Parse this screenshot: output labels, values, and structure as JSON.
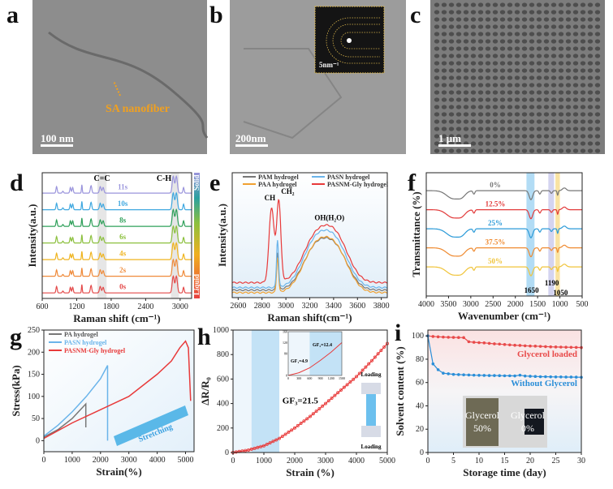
{
  "panels": {
    "a": {
      "letter": "a",
      "annotation": "SA nanofiber",
      "scalebar": "100 nm"
    },
    "b": {
      "letter": "b",
      "scalebar": "200nm",
      "inset_scalebar": "5nm⁻¹"
    },
    "c": {
      "letter": "c",
      "scalebar": "1 μm"
    },
    "d": {
      "letter": "d"
    },
    "e": {
      "letter": "e"
    },
    "f": {
      "letter": "f"
    },
    "g": {
      "letter": "g"
    },
    "h": {
      "letter": "h"
    },
    "i": {
      "letter": "i"
    }
  },
  "chart_data": [
    {
      "id": "d",
      "type": "line",
      "xlabel": "Raman shift (cm⁻¹)",
      "ylabel": "Intensity(a.u.)",
      "xlim": [
        600,
        3200
      ],
      "xticks": [
        600,
        1200,
        1800,
        2400,
        3000
      ],
      "annotations": [
        "C=C",
        "C-H"
      ],
      "highlight_bands": [
        [
          1560,
          1720
        ],
        [
          2840,
          2980
        ]
      ],
      "colorbar": {
        "top": "Solid",
        "bottom": "Liquid"
      },
      "peaks": [
        [
          850,
          0.35,
          15
        ],
        [
          960,
          0.1,
          15
        ],
        [
          1090,
          0.3,
          15
        ],
        [
          1130,
          0.3,
          15
        ],
        [
          1290,
          0.45,
          10
        ],
        [
          1450,
          0.4,
          18
        ],
        [
          1610,
          0.35,
          20
        ],
        [
          1660,
          0.3,
          20
        ],
        [
          2880,
          0.9,
          25
        ],
        [
          2935,
          0.9,
          25
        ],
        [
          3060,
          0.3,
          15
        ]
      ],
      "series": [
        {
          "name": "0s",
          "color": "#e44a4a"
        },
        {
          "name": "2s",
          "color": "#ef8a3a"
        },
        {
          "name": "4s",
          "color": "#efb41e"
        },
        {
          "name": "6s",
          "color": "#8cc03e"
        },
        {
          "name": "8s",
          "color": "#2fa05a"
        },
        {
          "name": "10s",
          "color": "#3fa8e0"
        },
        {
          "name": "11s",
          "color": "#9a94dc"
        }
      ]
    },
    {
      "id": "e",
      "type": "line",
      "xlabel": "Raman shift(cm⁻¹)",
      "ylabel": "Intensity(a.u.)",
      "xlim": [
        2550,
        3850
      ],
      "xticks": [
        2600,
        2800,
        3000,
        3200,
        3400,
        3600,
        3800
      ],
      "annotations": [
        "CH",
        "CH₂",
        "OH(H₂O)"
      ],
      "series": [
        {
          "name": "PAM hydrogel",
          "color": "#777777",
          "baseline": 0.06,
          "peaks": [
            [
              2930,
              0.3,
              12
            ],
            [
              3240,
              0.3,
              150
            ],
            [
              3420,
              0.3,
              150
            ]
          ]
        },
        {
          "name": "PAA hydrogel",
          "color": "#f0a030",
          "baseline": 0.04,
          "peaks": [
            [
              2930,
              0.28,
              12
            ],
            [
              3240,
              0.32,
              150
            ],
            [
              3420,
              0.32,
              150
            ]
          ]
        },
        {
          "name": "PASN hydrogel",
          "color": "#6ab4ea",
          "baseline": 0.08,
          "peaks": [
            [
              2930,
              0.38,
              12
            ],
            [
              3240,
              0.33,
              150
            ],
            [
              3420,
              0.33,
              150
            ]
          ]
        },
        {
          "name": "PASNM-Gly hydrogel",
          "color": "#e83a3a",
          "baseline": 0.12,
          "peaks": [
            [
              2880,
              0.6,
              30
            ],
            [
              2940,
              0.65,
              25
            ],
            [
              3240,
              0.32,
              150
            ],
            [
              3420,
              0.34,
              150
            ]
          ]
        }
      ]
    },
    {
      "id": "f",
      "type": "line",
      "xlabel": "Wavenumber (cm⁻¹)",
      "ylabel": "Transmittance (%)",
      "xlim": [
        4000,
        500
      ],
      "xticks": [
        4000,
        3500,
        3000,
        2500,
        2000,
        1500,
        1000,
        500
      ],
      "bands": [
        {
          "label": "1650",
          "range": [
            1750,
            1570
          ],
          "color": "#9fd3f3"
        },
        {
          "label": "1190",
          "range": [
            1260,
            1130
          ],
          "color": "#c9c9ec"
        },
        {
          "label": "1050",
          "range": [
            1100,
            1000
          ],
          "color": "#f7dc8c"
        }
      ],
      "dips": [
        [
          3400,
          -0.35,
          200
        ],
        [
          3200,
          -0.2,
          120
        ],
        [
          2930,
          -0.15,
          30
        ],
        [
          1650,
          -0.4,
          55
        ],
        [
          1450,
          -0.15,
          30
        ],
        [
          1190,
          -0.12,
          30
        ],
        [
          1050,
          -0.2,
          18
        ],
        [
          900,
          0.12,
          60
        ]
      ],
      "series": [
        {
          "name": "0%",
          "color": "#777777"
        },
        {
          "name": "12.5%",
          "color": "#e23a3a"
        },
        {
          "name": "25%",
          "color": "#2a9ad8"
        },
        {
          "name": "37.5%",
          "color": "#ef8a30"
        },
        {
          "name": "50%",
          "color": "#f0c43a"
        }
      ]
    },
    {
      "id": "g",
      "type": "line",
      "xlabel": "Strain(%)",
      "ylabel": "Stress(kPa)",
      "xlim": [
        0,
        5300
      ],
      "ylim": [
        -25,
        250
      ],
      "xticks": [
        0,
        1000,
        2000,
        3000,
        4000,
        5000
      ],
      "yticks": [
        0,
        50,
        100,
        150,
        200,
        250
      ],
      "annotation": "Stretching",
      "series": [
        {
          "name": "PA hydrogel",
          "color": "#777777",
          "x": [
            0,
            500,
            1000,
            1480,
            1480
          ],
          "y": [
            8,
            25,
            50,
            83,
            30
          ]
        },
        {
          "name": "PASN hydrogel",
          "color": "#6ab4ea",
          "x": [
            0,
            500,
            1000,
            1500,
            2000,
            2250,
            2250
          ],
          "y": [
            10,
            35,
            65,
            100,
            140,
            170,
            0
          ]
        },
        {
          "name": "PASNM-Gly hydrogel",
          "color": "#e83a3a",
          "x": [
            0,
            1000,
            2000,
            3000,
            4000,
            4500,
            4800,
            5000,
            5100,
            5180
          ],
          "y": [
            5,
            40,
            70,
            100,
            150,
            180,
            210,
            225,
            210,
            90
          ]
        }
      ]
    },
    {
      "id": "h",
      "type": "scatter",
      "xlabel": "Strain (%)",
      "ylabel": "ΔR/R₀",
      "xlim": [
        0,
        5000
      ],
      "ylim": [
        0,
        1000
      ],
      "xticks": [
        0,
        1000,
        2000,
        3000,
        4000,
        5000
      ],
      "yticks": [
        0,
        200,
        400,
        600,
        800,
        1000
      ],
      "regions": [
        [
          0,
          600
        ],
        [
          600,
          1500
        ]
      ],
      "annotations": [
        "GF₃=21.5",
        "Loading",
        "Loading"
      ],
      "series": [
        {
          "color": "#e83a3a",
          "x": [
            0,
            500,
            1000,
            1500,
            2000,
            2500,
            3000,
            3500,
            4000,
            4500,
            5000
          ],
          "y": [
            0,
            20,
            55,
            115,
            200,
            295,
            400,
            510,
            620,
            750,
            890
          ]
        }
      ],
      "inset": {
        "xlim": [
          0,
          1500
        ],
        "ylim": [
          0,
          160
        ],
        "xticks": [
          0,
          300,
          600,
          900,
          1200,
          1500
        ],
        "yticks": [
          0,
          80,
          120,
          160
        ],
        "annotations": [
          "GF₁=4.9",
          "GF₂=12.4"
        ],
        "x": [
          0,
          300,
          600,
          900,
          1200,
          1500
        ],
        "y": [
          0,
          10,
          28,
          55,
          85,
          120
        ]
      }
    },
    {
      "id": "i",
      "type": "line",
      "xlabel": "Storage time (day)",
      "ylabel": "Solvent content (%)",
      "xlim": [
        0,
        30
      ],
      "ylim": [
        0,
        105
      ],
      "xticks": [
        0,
        5,
        10,
        15,
        20,
        25,
        30
      ],
      "yticks": [
        0,
        20,
        40,
        60,
        80,
        100
      ],
      "photo_labels": [
        "Glycerol 50%",
        "Glycerol 0%"
      ],
      "series": [
        {
          "name": "Glycerol loaded",
          "color": "#e84a4a",
          "y": [
            100,
            99.5,
            99.2,
            99,
            98.8,
            98.7,
            98.6,
            98.5,
            95,
            94.5,
            94.2,
            94,
            93.6,
            93.2,
            93,
            92.6,
            92.3,
            92,
            91.8,
            91.5,
            91.3,
            91.2,
            91,
            90.8,
            90.6,
            90.5,
            90.4,
            90.3,
            90.2,
            90.1,
            90
          ]
        },
        {
          "name": "Without Glycerol",
          "color": "#2a8ed8",
          "y": [
            100,
            76,
            71,
            68,
            67.5,
            67,
            66.8,
            66.6,
            66.5,
            66.3,
            66.2,
            66.1,
            66,
            66,
            65.9,
            65.8,
            65.8,
            65.7,
            66.3,
            65.6,
            65.4,
            65.2,
            65,
            65,
            64.9,
            64.8,
            64.8,
            64.7,
            64.7,
            64.6,
            64.5
          ]
        }
      ]
    }
  ]
}
